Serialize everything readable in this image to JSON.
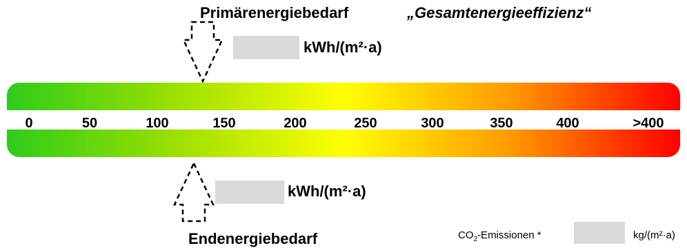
{
  "primary_energy": {
    "title": "Primärenergiebedarf",
    "subtitle": "„Gesamtenergieeffizienz“",
    "value": "",
    "unit": "kWh/(m²·a)"
  },
  "final_energy": {
    "title": "Endenergiebedarf",
    "value": "",
    "unit": "kWh/(m²·a)"
  },
  "scale": {
    "ticks": [
      "0",
      "50",
      "100",
      "150",
      "200",
      "250",
      "300",
      "350",
      "400",
      ">400"
    ],
    "gradient_colors": [
      "#2ecc1a",
      "#9be000",
      "#ffff00",
      "#ff9900",
      "#ff0000"
    ]
  },
  "co2": {
    "label_prefix": "CO",
    "label_sub": "2",
    "label_suffix": "-Emissionen *",
    "value": "",
    "unit": "kg/(m²·a)"
  },
  "icons": {
    "top_arrow": "dashed-down-arrow-icon",
    "bottom_arrow": "dashed-up-arrow-icon"
  }
}
